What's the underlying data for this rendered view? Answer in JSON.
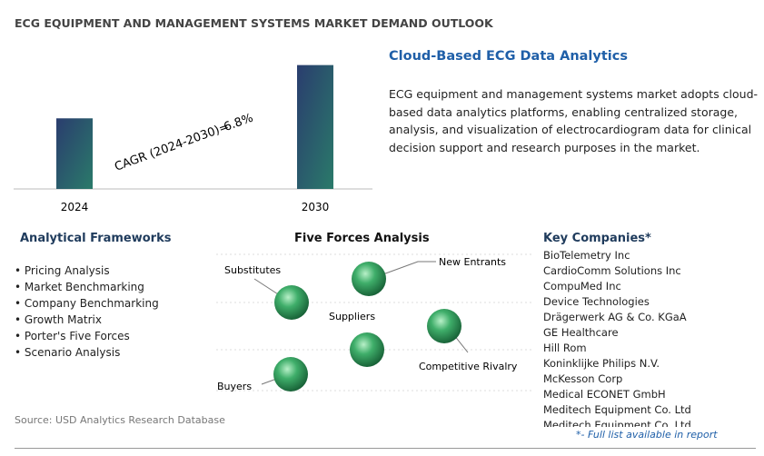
{
  "header": {
    "title": "ECG EQUIPMENT AND MANAGEMENT SYSTEMS MARKET DEMAND OUTLOOK"
  },
  "chart_data": {
    "type": "bar",
    "categories": [
      "2024",
      "2030"
    ],
    "values": [
      57,
      100
    ],
    "ylim": [
      0,
      110
    ],
    "annotation": {
      "label": "CAGR (2024-2030)=",
      "value": "6.8%"
    }
  },
  "highlight": {
    "title": "Cloud-Based ECG Data Analytics",
    "lines": [
      "ECG equipment and management systems market adopts cloud-",
      "based data analytics platforms, enabling centralized storage,",
      "analysis, and visualization of electrocardiogram data for clinical",
      "decision support and research purposes in the market."
    ]
  },
  "frameworks": {
    "title": "Analytical Frameworks",
    "items": [
      "Pricing Analysis",
      "Market Benchmarking",
      "Company Benchmarking",
      "Growth Matrix",
      "Porter's Five Forces",
      "Scenario Analysis"
    ]
  },
  "five_forces": {
    "title": "Five Forces Analysis",
    "labels": [
      "Substitutes",
      "New Entrants",
      "Suppliers",
      "Competitive Rivalry",
      "Buyers"
    ]
  },
  "companies": {
    "title": "Key Companies*",
    "items": [
      "BioTelemetry Inc",
      "CardioComm Solutions Inc",
      "CompuMed Inc",
      "Device Technologies",
      "Drägerwerk AG & Co. KGaA",
      "GE Healthcare",
      "Hill Rom",
      "Koninklijke Philips N.V.",
      "McKesson Corp",
      "Medical ECONET GmbH",
      "Meditech Equipment Co. Ltd",
      "Meditech Equipment Co. Ltd"
    ],
    "note": "*- Full list available in report"
  },
  "source": "Source: USD Analytics Research Database"
}
